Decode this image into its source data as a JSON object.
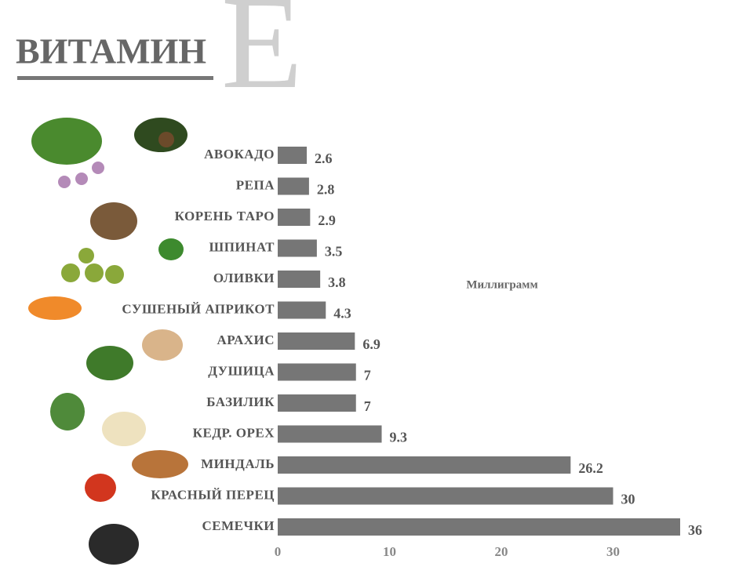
{
  "chart_data": {
    "type": "bar",
    "orientation": "horizontal",
    "title": "ВИТАМИН",
    "title_letter": "Е",
    "x_label": "Миллиграмм",
    "categories": [
      "АВОКАДО",
      "РЕПА",
      "КОРЕНЬ ТАРО",
      "ШПИНАТ",
      "ОЛИВКИ",
      "СУШЕНЫЙ АПРИКОТ",
      "АРАХИС",
      "ДУШИЦА",
      "БАЗИЛИК",
      "КЕДР. ОРЕХ",
      "МИНДАЛЬ",
      "КРАСНЫЙ ПЕРЕЦ",
      "СЕМЕЧКИ"
    ],
    "values": [
      2.6,
      2.8,
      2.9,
      3.5,
      3.8,
      4.3,
      6.9,
      7,
      7,
      9.3,
      26.2,
      30,
      36
    ],
    "color": "#767676",
    "xlim": [
      0,
      40
    ],
    "xticks": [
      0,
      10,
      20,
      30
    ],
    "grid": false
  }
}
